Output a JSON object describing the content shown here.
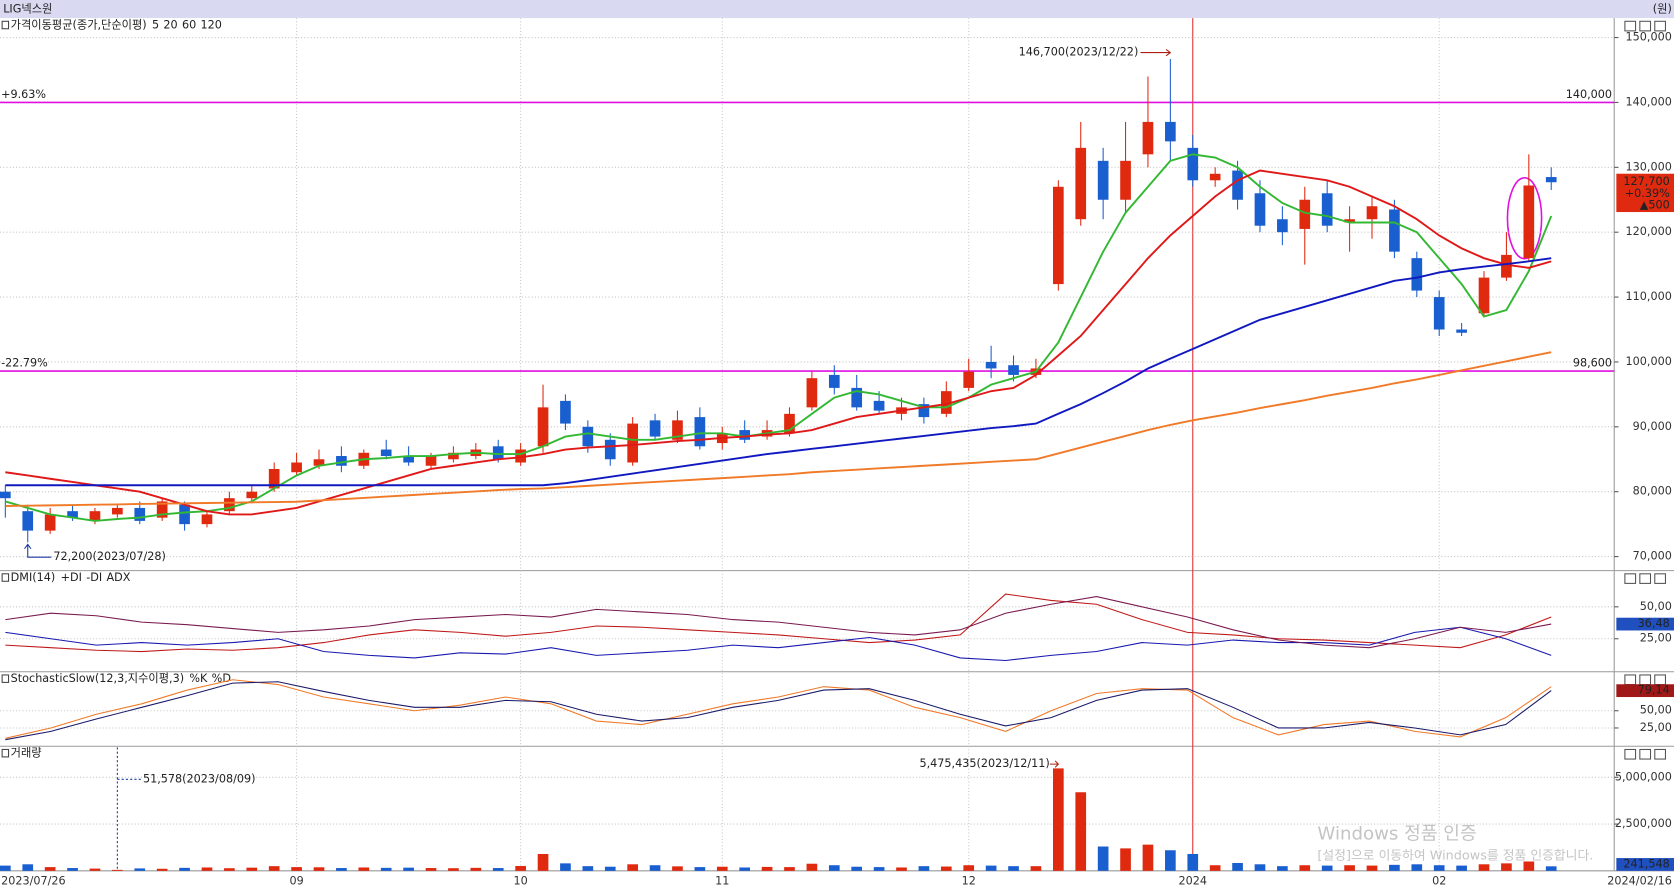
{
  "chart_data": [
    {
      "type": "candlestick",
      "title": "LIG넥스원",
      "unit": "(원)",
      "legend_title": "가격이동평균(종가,단순이평)",
      "categories": [
        "2023/07/26",
        null,
        null,
        null,
        null,
        null,
        null,
        null,
        null,
        null,
        null,
        null,
        null,
        "09",
        null,
        null,
        null,
        null,
        null,
        null,
        null,
        null,
        null,
        "10",
        null,
        null,
        null,
        null,
        null,
        null,
        null,
        null,
        "11",
        null,
        null,
        null,
        null,
        null,
        null,
        null,
        null,
        null,
        null,
        "12",
        null,
        null,
        null,
        null,
        null,
        null,
        null,
        null,
        null,
        "2024",
        null,
        null,
        null,
        null,
        null,
        null,
        null,
        null,
        null,
        null,
        "02",
        null,
        null,
        null,
        null,
        "2024/02/16"
      ],
      "open": [
        80000,
        77000,
        74000,
        77000,
        75500,
        76500,
        77500,
        76000,
        78000,
        75000,
        77000,
        79000,
        80500,
        83000,
        84000,
        85500,
        84000,
        86500,
        85500,
        84000,
        85000,
        85500,
        87000,
        84500,
        87000,
        94000,
        90000,
        88000,
        84500,
        91000,
        88000,
        91500,
        87500,
        89500,
        88500,
        89000,
        93000,
        98000,
        96000,
        94000,
        92000,
        93500,
        92000,
        96000,
        100000,
        99500,
        98000,
        112000,
        122000,
        131000,
        125000,
        132000,
        137000,
        133000,
        128000,
        129500,
        126000,
        122000,
        120500,
        126000,
        121500,
        122000,
        123500,
        116000,
        110000,
        105000,
        107500,
        113000,
        116000,
        128500
      ],
      "high": [
        81000,
        78000,
        77500,
        78000,
        77500,
        78000,
        78500,
        79000,
        78500,
        77000,
        80000,
        81000,
        84500,
        86000,
        86500,
        87000,
        86500,
        88000,
        87000,
        86000,
        87000,
        87500,
        88000,
        87500,
        96500,
        95000,
        91000,
        89000,
        91500,
        92000,
        92500,
        93000,
        90000,
        91000,
        91000,
        93000,
        98500,
        99500,
        98000,
        95500,
        94500,
        94500,
        97000,
        100500,
        102500,
        101000,
        100500,
        128000,
        137000,
        133000,
        137000,
        144000,
        146700,
        135000,
        130000,
        131000,
        128000,
        124000,
        127000,
        128000,
        124000,
        125500,
        125000,
        117000,
        111000,
        106000,
        114000,
        120000,
        132000,
        130000
      ],
      "low": [
        76000,
        72200,
        73500,
        75500,
        75000,
        76000,
        75000,
        75500,
        74000,
        74500,
        76500,
        78500,
        80000,
        82500,
        83500,
        83000,
        83500,
        85000,
        84000,
        83500,
        84500,
        85000,
        84500,
        84000,
        86000,
        89500,
        86000,
        84000,
        84000,
        88000,
        87500,
        86500,
        86500,
        87500,
        88000,
        88500,
        92500,
        95000,
        92500,
        92000,
        91000,
        90500,
        91500,
        95500,
        97500,
        97000,
        97500,
        111000,
        121000,
        122000,
        123000,
        130000,
        131000,
        127000,
        127000,
        123500,
        120000,
        118000,
        115000,
        120000,
        117000,
        119000,
        116000,
        110000,
        104000,
        104000,
        107000,
        112500,
        115500,
        126500
      ],
      "close": [
        79000,
        74000,
        76500,
        76000,
        77000,
        77500,
        75500,
        78500,
        75000,
        76500,
        79000,
        80000,
        83500,
        84500,
        85000,
        84000,
        86000,
        85500,
        84500,
        85500,
        86000,
        86500,
        85000,
        86500,
        93000,
        90500,
        87000,
        85000,
        90500,
        88500,
        91000,
        87000,
        89000,
        88000,
        89500,
        92000,
        97500,
        96000,
        93000,
        92500,
        93000,
        91500,
        95500,
        98500,
        99000,
        98000,
        99000,
        127000,
        133000,
        125000,
        131000,
        137000,
        134000,
        128000,
        129000,
        125000,
        121000,
        120000,
        125000,
        121000,
        122000,
        124000,
        117000,
        111000,
        105000,
        104500,
        113000,
        116500,
        127200,
        127700
      ],
      "up_color": "#e02a10",
      "down_color": "#1a5fd0",
      "series": [
        {
          "name": "5",
          "color": "#33b833",
          "values": [
            78500,
            77500,
            76500,
            76000,
            75500,
            75800,
            76000,
            76500,
            76800,
            77000,
            77500,
            78500,
            80500,
            82500,
            84000,
            84500,
            85000,
            85200,
            85500,
            85500,
            85800,
            86000,
            85800,
            85800,
            87000,
            88500,
            89000,
            88500,
            88000,
            88000,
            88500,
            89000,
            89000,
            88500,
            89000,
            89500,
            92000,
            94500,
            95500,
            95000,
            94000,
            93000,
            93000,
            94500,
            96500,
            97500,
            98500,
            103000,
            110000,
            117000,
            123000,
            127000,
            131000,
            132000,
            131500,
            130000,
            127000,
            124500,
            123000,
            122500,
            121500,
            121500,
            121500,
            120000,
            116000,
            112000,
            107000,
            108000,
            114000,
            122500
          ]
        },
        {
          "name": "20",
          "color": "#e01818",
          "values": [
            83000,
            82500,
            82000,
            81500,
            81000,
            80500,
            80000,
            79000,
            78000,
            77000,
            76500,
            76500,
            77000,
            77500,
            78500,
            79500,
            80500,
            81500,
            82500,
            83500,
            84000,
            84500,
            85000,
            85300,
            85800,
            86500,
            86800,
            87000,
            87200,
            87500,
            87800,
            88000,
            88300,
            88500,
            88800,
            89000,
            89500,
            90500,
            91500,
            92000,
            92500,
            93000,
            93500,
            94500,
            95500,
            96000,
            98000,
            101000,
            104000,
            108000,
            112000,
            116000,
            119500,
            122500,
            125500,
            128000,
            129500,
            129000,
            128500,
            128000,
            127000,
            125500,
            124000,
            122000,
            119500,
            117500,
            116000,
            115000,
            114500,
            115500
          ]
        },
        {
          "name": "60",
          "color": "#1018c0",
          "values": [
            81000,
            81000,
            81000,
            81000,
            81000,
            81000,
            81000,
            81000,
            81000,
            81000,
            81000,
            81000,
            81000,
            81000,
            81000,
            81000,
            81000,
            81000,
            81000,
            81000,
            81000,
            81000,
            81000,
            81000,
            81000,
            81300,
            81800,
            82300,
            82800,
            83300,
            83800,
            84300,
            84800,
            85300,
            85800,
            86200,
            86600,
            87000,
            87400,
            87800,
            88200,
            88600,
            89000,
            89400,
            89800,
            90100,
            90500,
            92000,
            93500,
            95200,
            97000,
            99000,
            100500,
            102000,
            103500,
            105000,
            106500,
            107500,
            108500,
            109500,
            110500,
            111500,
            112500,
            113000,
            113800,
            114300,
            114700,
            115100,
            115500,
            116000
          ]
        },
        {
          "name": "120",
          "color": "#f07a28",
          "values": [
            77800,
            77850,
            77900,
            77950,
            78000,
            78050,
            78100,
            78150,
            78200,
            78250,
            78300,
            78350,
            78400,
            78450,
            78650,
            78850,
            79050,
            79250,
            79450,
            79650,
            79850,
            80050,
            80250,
            80400,
            80500,
            80700,
            80900,
            81100,
            81300,
            81500,
            81700,
            81900,
            82100,
            82300,
            82500,
            82700,
            83000,
            83200,
            83400,
            83600,
            83800,
            84000,
            84200,
            84400,
            84600,
            84800,
            85000,
            85900,
            86800,
            87700,
            88600,
            89500,
            90300,
            91000,
            91600,
            92200,
            92900,
            93500,
            94100,
            94800,
            95400,
            96000,
            96700,
            97300,
            98000,
            98700,
            99400,
            100100,
            100800,
            101500
          ]
        }
      ],
      "ylim": [
        68000,
        153000
      ],
      "yticks": [
        {
          "value": 70000,
          "label": "70,000"
        },
        {
          "value": 80000,
          "label": "80,000"
        },
        {
          "value": 90000,
          "label": "90,000"
        },
        {
          "value": 100000,
          "label": "100,000"
        },
        {
          "value": 110000,
          "label": "110,000"
        },
        {
          "value": 120000,
          "label": "120,000"
        },
        {
          "value": 130000,
          "label": "130,000"
        },
        {
          "value": 140000,
          "label": "140,000"
        },
        {
          "value": 150000,
          "label": "150,000"
        }
      ],
      "grid": true,
      "hlines": [
        {
          "value": 140000,
          "label": "140,000",
          "pct": "+9.63%"
        },
        {
          "value": 98600,
          "label": "98,600",
          "pct": "-22.79%"
        }
      ],
      "hline_color": "#e010e0",
      "high_label": "146,700(2023/12/22)",
      "low_label": "72,200(2023/07/28)",
      "last_label": [
        "127,700",
        "+0.39%",
        "▲500"
      ]
    },
    {
      "type": "line",
      "title": "DMI(14)",
      "series": [
        {
          "name": "+DI",
          "color": "#c01818",
          "values": [
            20,
            18,
            16,
            15,
            17,
            16,
            18,
            22,
            28,
            32,
            30,
            27,
            30,
            35,
            34,
            32,
            30,
            28,
            25,
            22,
            24,
            28,
            60,
            55,
            52,
            40,
            30,
            28,
            25,
            24,
            22,
            20,
            18,
            28,
            42
          ]
        },
        {
          "name": "-DI",
          "color": "#1818b0",
          "values": [
            30,
            25,
            20,
            22,
            20,
            22,
            25,
            15,
            12,
            10,
            14,
            13,
            18,
            12,
            14,
            16,
            20,
            18,
            22,
            26,
            20,
            10,
            8,
            12,
            15,
            22,
            20,
            24,
            22,
            22,
            20,
            30,
            34,
            25,
            12
          ]
        },
        {
          "name": "ADX",
          "color": "#7a1a50",
          "values": [
            40,
            45,
            43,
            38,
            36,
            33,
            30,
            32,
            35,
            40,
            42,
            44,
            42,
            48,
            46,
            44,
            40,
            38,
            34,
            30,
            28,
            32,
            45,
            52,
            58,
            50,
            42,
            32,
            24,
            20,
            18,
            25,
            34,
            30,
            36.48
          ]
        }
      ],
      "ylim": [
        0,
        77.5
      ],
      "yticks": [
        {
          "value": 25,
          "label": "25,00"
        },
        {
          "value": 50,
          "label": "50,00"
        }
      ],
      "grid": true,
      "last_label": "36,48"
    },
    {
      "type": "line",
      "title": "StochasticSlow(12,3,지수이평,3)",
      "series": [
        {
          "name": "%K",
          "color": "#f07a28",
          "values": [
            10,
            25,
            45,
            60,
            80,
            95,
            88,
            70,
            60,
            50,
            58,
            70,
            60,
            35,
            30,
            45,
            60,
            70,
            85,
            80,
            55,
            40,
            20,
            50,
            75,
            82,
            80,
            40,
            15,
            30,
            35,
            20,
            12,
            40,
            85
          ]
        },
        {
          "name": "%D",
          "color": "#1a1a6a",
          "values": [
            8,
            20,
            38,
            55,
            72,
            90,
            92,
            78,
            65,
            55,
            55,
            65,
            63,
            45,
            35,
            40,
            55,
            65,
            80,
            82,
            65,
            45,
            28,
            40,
            65,
            80,
            82,
            55,
            25,
            25,
            33,
            25,
            15,
            30,
            79.14
          ]
        }
      ],
      "ylim": [
        0,
        105
      ],
      "yticks": [
        {
          "value": 25,
          "label": "25,00"
        },
        {
          "value": 50,
          "label": "50,00"
        }
      ],
      "grid": true,
      "last_label": "79,14"
    },
    {
      "type": "bar",
      "title": "거래량",
      "values": [
        280000,
        350000,
        200000,
        150000,
        120000,
        51578,
        130000,
        110000,
        160000,
        180000,
        140000,
        170000,
        250000,
        200000,
        190000,
        150000,
        180000,
        160000,
        170000,
        150000,
        140000,
        160000,
        150000,
        260000,
        900000,
        400000,
        250000,
        220000,
        350000,
        300000,
        240000,
        200000,
        220000,
        180000,
        210000,
        200000,
        380000,
        300000,
        220000,
        200000,
        180000,
        250000,
        230000,
        300000,
        280000,
        250000,
        250000,
        5475435,
        4200000,
        1300000,
        1200000,
        1400000,
        1100000,
        900000,
        300000,
        420000,
        350000,
        250000,
        300000,
        280000,
        300000,
        280000,
        320000,
        350000,
        300000,
        280000,
        350000,
        400000,
        500000,
        241548
      ],
      "ylim": [
        0,
        6600000
      ],
      "yticks": [
        {
          "value": 2500000,
          "label": "2,500,000"
        },
        {
          "value": 5000000,
          "label": "5,000,000"
        }
      ],
      "grid": true,
      "max_label": "5,475,435(2023/12/11)",
      "min_label": "51,578(2023/08/09)",
      "last_label": "241,548"
    }
  ],
  "watermark": {
    "title": "Windows 정품 인증",
    "text": "[설정]으로 이동하여 Windows를 정품 인증합니다."
  }
}
